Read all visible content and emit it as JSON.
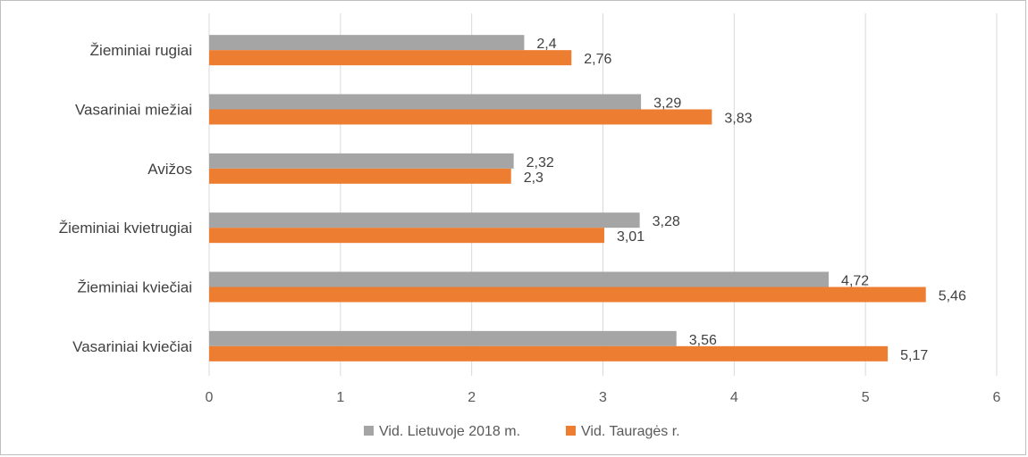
{
  "chart_data": {
    "type": "bar",
    "orientation": "horizontal",
    "categories": [
      "Žieminiai rugiai",
      "Vasariniai miežiai",
      "Avižos",
      "Žieminiai kvietrugiai",
      "Žieminiai kviečiai",
      "Vasariniai kviečiai"
    ],
    "series": [
      {
        "name": "Vid. Lietuvoje 2018 m.",
        "color": "#a5a5a5",
        "values": [
          2.4,
          3.29,
          2.32,
          3.28,
          4.72,
          3.56
        ],
        "labels": [
          "2,4",
          "3,29",
          "2,32",
          "3,28",
          "4,72",
          "3,56"
        ]
      },
      {
        "name": "Vid. Tauragės r.",
        "color": "#ed7d31",
        "values": [
          2.76,
          3.83,
          2.3,
          3.01,
          5.46,
          5.17
        ],
        "labels": [
          "2,76",
          "3,83",
          "2,3",
          "3,01",
          "5,46",
          "5,17"
        ]
      }
    ],
    "xlim": [
      0,
      6
    ],
    "x_ticks": [
      "0",
      "1",
      "2",
      "3",
      "4",
      "5",
      "6"
    ],
    "grid": "vertical",
    "legend_position": "bottom"
  }
}
